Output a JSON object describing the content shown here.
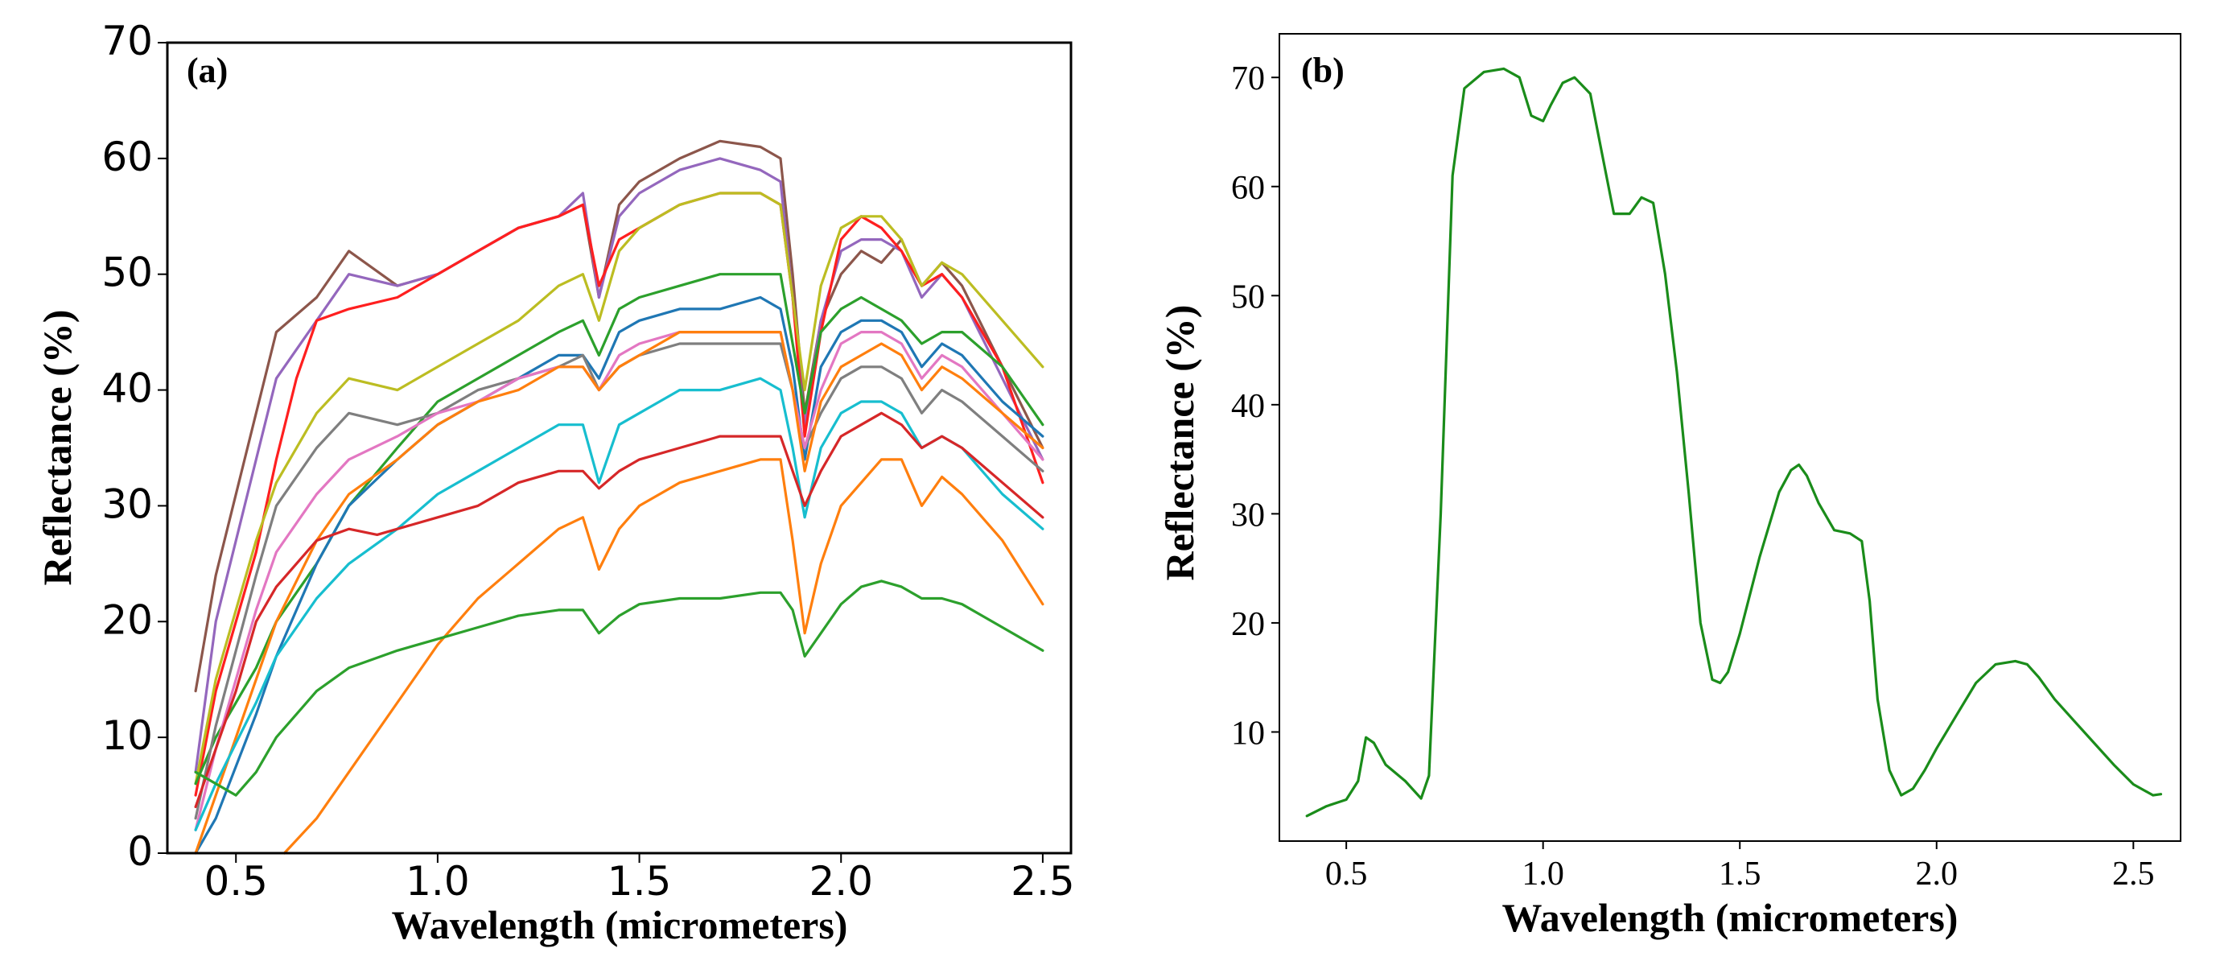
{
  "chart_data": [
    {
      "panel": "(a)",
      "type": "line",
      "xlabel": "Wavelength (micrometers)",
      "ylabel": "Reflectance (%)",
      "xlim": [
        0.33,
        2.57
      ],
      "ylim": [
        0,
        70
      ],
      "xticks": [
        0.5,
        1.0,
        1.5,
        2.0,
        2.5
      ],
      "xtick_labels": [
        "0.5",
        "1.0",
        "1.5",
        "2.0",
        "2.5"
      ],
      "yticks": [
        0,
        10,
        20,
        30,
        40,
        50,
        60,
        70
      ],
      "ytick_labels": [
        "0",
        "10",
        "20",
        "30",
        "40",
        "50",
        "60",
        "70"
      ],
      "grid": false,
      "series": [
        {
          "name": "brown",
          "color": "#8c564b",
          "x": [
            0.4,
            0.45,
            0.55,
            0.6,
            0.7,
            0.78,
            0.9,
            1.0,
            1.1,
            1.2,
            1.3,
            1.36,
            1.4,
            1.45,
            1.5,
            1.6,
            1.7,
            1.8,
            1.85,
            1.88,
            1.91,
            1.95,
            2.0,
            2.05,
            2.1,
            2.15,
            2.2,
            2.25,
            2.3,
            2.4,
            2.5
          ],
          "y": [
            14,
            24,
            38,
            45,
            48,
            52,
            49,
            50,
            52,
            54,
            55,
            56,
            48,
            56,
            58,
            60,
            61.5,
            61,
            60,
            50,
            38,
            46,
            50,
            52,
            51,
            53,
            49,
            51,
            49,
            42,
            35
          ]
        },
        {
          "name": "purple",
          "color": "#9467bd",
          "x": [
            0.4,
            0.45,
            0.55,
            0.6,
            0.7,
            0.78,
            0.9,
            1.0,
            1.1,
            1.2,
            1.3,
            1.36,
            1.4,
            1.45,
            1.5,
            1.6,
            1.7,
            1.8,
            1.85,
            1.88,
            1.91,
            1.95,
            2.0,
            2.05,
            2.1,
            2.15,
            2.2,
            2.25,
            2.3,
            2.4,
            2.5
          ],
          "y": [
            7,
            20,
            34,
            41,
            46,
            50,
            49,
            50,
            52,
            54,
            55,
            57,
            48,
            55,
            57,
            59,
            60,
            59,
            58,
            48,
            37,
            46,
            52,
            53,
            53,
            52,
            48,
            50,
            48,
            41,
            34
          ]
        },
        {
          "name": "red-upper",
          "color": "#ff1f1f",
          "x": [
            0.4,
            0.45,
            0.55,
            0.6,
            0.65,
            0.7,
            0.78,
            0.9,
            1.0,
            1.1,
            1.2,
            1.3,
            1.36,
            1.4,
            1.45,
            1.5,
            1.6,
            1.7,
            1.8,
            1.85,
            1.88,
            1.91,
            1.95,
            2.0,
            2.05,
            2.1,
            2.15,
            2.2,
            2.25,
            2.3,
            2.4,
            2.5
          ],
          "y": [
            5,
            14,
            26,
            34,
            41,
            46,
            47,
            48,
            50,
            52,
            54,
            55,
            56,
            49,
            53,
            54,
            56,
            57,
            57,
            56,
            48,
            36,
            45,
            53,
            55,
            54,
            52,
            49,
            50,
            48,
            42,
            32
          ]
        },
        {
          "name": "olive",
          "color": "#bcbd22",
          "x": [
            0.4,
            0.45,
            0.55,
            0.6,
            0.7,
            0.78,
            0.9,
            1.0,
            1.1,
            1.2,
            1.3,
            1.36,
            1.4,
            1.45,
            1.5,
            1.6,
            1.7,
            1.8,
            1.85,
            1.88,
            1.91,
            1.95,
            2.0,
            2.05,
            2.1,
            2.15,
            2.2,
            2.25,
            2.3,
            2.4,
            2.5
          ],
          "y": [
            6,
            15,
            27,
            32,
            38,
            41,
            40,
            42,
            44,
            46,
            49,
            50,
            46,
            52,
            54,
            56,
            57,
            57,
            56,
            48,
            40,
            49,
            54,
            55,
            55,
            53,
            49,
            51,
            50,
            46,
            42
          ]
        },
        {
          "name": "green-upper",
          "color": "#2ca02c",
          "x": [
            0.4,
            0.45,
            0.55,
            0.6,
            0.7,
            0.78,
            0.9,
            1.0,
            1.1,
            1.2,
            1.3,
            1.36,
            1.4,
            1.45,
            1.5,
            1.6,
            1.7,
            1.8,
            1.85,
            1.88,
            1.91,
            1.95,
            2.0,
            2.05,
            2.1,
            2.15,
            2.2,
            2.25,
            2.3,
            2.4,
            2.5
          ],
          "y": [
            6,
            10,
            16,
            20,
            25,
            30,
            35,
            39,
            41,
            43,
            45,
            46,
            43,
            47,
            48,
            49,
            50,
            50,
            50,
            44,
            38,
            45,
            47,
            48,
            47,
            46,
            44,
            45,
            45,
            42,
            37
          ]
        },
        {
          "name": "blue",
          "color": "#1f77b4",
          "x": [
            0.4,
            0.45,
            0.55,
            0.6,
            0.7,
            0.78,
            0.9,
            1.0,
            1.1,
            1.2,
            1.3,
            1.36,
            1.4,
            1.45,
            1.5,
            1.6,
            1.7,
            1.8,
            1.85,
            1.88,
            1.91,
            1.95,
            2.0,
            2.05,
            2.1,
            2.15,
            2.2,
            2.25,
            2.3,
            2.4,
            2.5
          ],
          "y": [
            0,
            3,
            12,
            17,
            25,
            30,
            34,
            37,
            39,
            41,
            43,
            43,
            41,
            45,
            46,
            47,
            47,
            48,
            47,
            42,
            34,
            42,
            45,
            46,
            46,
            45,
            42,
            44,
            43,
            39,
            36
          ]
        },
        {
          "name": "gray",
          "color": "#7f7f7f",
          "x": [
            0.4,
            0.45,
            0.55,
            0.6,
            0.7,
            0.78,
            0.9,
            1.0,
            1.1,
            1.2,
            1.3,
            1.36,
            1.4,
            1.45,
            1.5,
            1.6,
            1.7,
            1.8,
            1.85,
            1.88,
            1.91,
            1.95,
            2.0,
            2.05,
            2.1,
            2.15,
            2.2,
            2.25,
            2.3,
            2.4,
            2.5
          ],
          "y": [
            3,
            11,
            24,
            30,
            35,
            38,
            37,
            38,
            40,
            41,
            42,
            43,
            40,
            42,
            43,
            44,
            44,
            44,
            44,
            40,
            35,
            38,
            41,
            42,
            42,
            41,
            38,
            40,
            39,
            36,
            33
          ]
        },
        {
          "name": "pink",
          "color": "#e377c2",
          "x": [
            0.4,
            0.45,
            0.55,
            0.6,
            0.7,
            0.78,
            0.9,
            1.0,
            1.1,
            1.2,
            1.3,
            1.36,
            1.4,
            1.45,
            1.5,
            1.6,
            1.7,
            1.8,
            1.85,
            1.88,
            1.91,
            1.95,
            2.0,
            2.05,
            2.1,
            2.15,
            2.2,
            2.25,
            2.3,
            2.4,
            2.5
          ],
          "y": [
            2,
            9,
            21,
            26,
            31,
            34,
            36,
            38,
            39,
            41,
            42,
            42,
            40,
            43,
            44,
            45,
            45,
            45,
            45,
            40,
            35,
            40,
            44,
            45,
            45,
            44,
            41,
            43,
            42,
            38,
            34
          ]
        },
        {
          "name": "orange-upper",
          "color": "#ff7f0e",
          "x": [
            0.4,
            0.45,
            0.55,
            0.6,
            0.7,
            0.78,
            0.9,
            1.0,
            1.1,
            1.2,
            1.3,
            1.36,
            1.4,
            1.45,
            1.5,
            1.6,
            1.7,
            1.8,
            1.85,
            1.88,
            1.91,
            1.95,
            2.0,
            2.05,
            2.1,
            2.15,
            2.2,
            2.25,
            2.3,
            2.4,
            2.5
          ],
          "y": [
            0,
            5,
            15,
            20,
            27,
            31,
            34,
            37,
            39,
            40,
            42,
            42,
            40,
            42,
            43,
            45,
            45,
            45,
            45,
            40,
            33,
            39,
            42,
            43,
            44,
            43,
            40,
            42,
            41,
            38,
            35
          ]
        },
        {
          "name": "cyan",
          "color": "#17becf",
          "x": [
            0.4,
            0.45,
            0.55,
            0.6,
            0.7,
            0.78,
            0.9,
            1.0,
            1.1,
            1.2,
            1.3,
            1.36,
            1.4,
            1.45,
            1.5,
            1.6,
            1.7,
            1.8,
            1.85,
            1.88,
            1.91,
            1.95,
            2.0,
            2.05,
            2.1,
            2.15,
            2.2,
            2.25,
            2.3,
            2.4,
            2.5
          ],
          "y": [
            2,
            6,
            13,
            17,
            22,
            25,
            28,
            31,
            33,
            35,
            37,
            37,
            32,
            37,
            38,
            40,
            40,
            41,
            40,
            35,
            29,
            35,
            38,
            39,
            39,
            38,
            35,
            36,
            35,
            31,
            28
          ]
        },
        {
          "name": "red-lower",
          "color": "#d62728",
          "x": [
            0.4,
            0.45,
            0.5,
            0.55,
            0.6,
            0.65,
            0.7,
            0.78,
            0.85,
            0.9,
            1.0,
            1.1,
            1.2,
            1.3,
            1.36,
            1.4,
            1.45,
            1.5,
            1.6,
            1.7,
            1.8,
            1.85,
            1.88,
            1.91,
            1.95,
            2.0,
            2.05,
            2.1,
            2.15,
            2.2,
            2.25,
            2.3,
            2.4,
            2.5
          ],
          "y": [
            4,
            9,
            14,
            20,
            23,
            25,
            27,
            28,
            27.5,
            28,
            29,
            30,
            32,
            33,
            33,
            31.5,
            33,
            34,
            35,
            36,
            36,
            36,
            33,
            30,
            33,
            36,
            37,
            38,
            37,
            35,
            36,
            35,
            32,
            29
          ]
        },
        {
          "name": "orange-lower",
          "color": "#ff7f0e",
          "x": [
            0.62,
            0.7,
            0.8,
            0.9,
            1.0,
            1.1,
            1.2,
            1.3,
            1.36,
            1.4,
            1.45,
            1.5,
            1.6,
            1.7,
            1.8,
            1.85,
            1.88,
            1.91,
            1.95,
            2.0,
            2.05,
            2.1,
            2.15,
            2.2,
            2.25,
            2.3,
            2.4,
            2.5
          ],
          "y": [
            0,
            3,
            8,
            13,
            18,
            22,
            25,
            28,
            29,
            24.5,
            28,
            30,
            32,
            33,
            34,
            34,
            27,
            19,
            25,
            30,
            32,
            34,
            34,
            30,
            32.5,
            31,
            27,
            21.5
          ]
        },
        {
          "name": "green-lower",
          "color": "#2ca02c",
          "x": [
            0.4,
            0.45,
            0.5,
            0.55,
            0.6,
            0.7,
            0.78,
            0.9,
            1.0,
            1.1,
            1.2,
            1.3,
            1.36,
            1.4,
            1.45,
            1.5,
            1.6,
            1.7,
            1.8,
            1.85,
            1.88,
            1.91,
            1.95,
            2.0,
            2.05,
            2.1,
            2.15,
            2.2,
            2.25,
            2.3,
            2.4,
            2.5
          ],
          "y": [
            7,
            6,
            5,
            7,
            10,
            14,
            16,
            17.5,
            18.5,
            19.5,
            20.5,
            21,
            21,
            19,
            20.5,
            21.5,
            22,
            22,
            22.5,
            22.5,
            21,
            17,
            19,
            21.5,
            23,
            23.5,
            23,
            22,
            22,
            21.5,
            19.5,
            17.5
          ]
        }
      ]
    },
    {
      "panel": "(b)",
      "type": "line",
      "xlabel": "Wavelength (micrometers)",
      "ylabel": "Reflectance (%)",
      "xlim": [
        0.33,
        2.62
      ],
      "ylim": [
        0,
        74
      ],
      "xticks": [
        0.5,
        1.0,
        1.5,
        2.0,
        2.5
      ],
      "xtick_labels": [
        "0.5",
        "1.0",
        "1.5",
        "2.0",
        "2.5"
      ],
      "yticks": [
        10,
        20,
        30,
        40,
        50,
        60,
        70
      ],
      "ytick_labels": [
        "10",
        "20",
        "30",
        "40",
        "50",
        "60",
        "70"
      ],
      "grid": false,
      "series": [
        {
          "name": "spectrum",
          "color": "#1a8c1a",
          "x": [
            0.4,
            0.45,
            0.5,
            0.53,
            0.55,
            0.57,
            0.6,
            0.65,
            0.69,
            0.71,
            0.74,
            0.77,
            0.8,
            0.85,
            0.9,
            0.94,
            0.97,
            1.0,
            1.02,
            1.05,
            1.08,
            1.12,
            1.15,
            1.18,
            1.22,
            1.25,
            1.28,
            1.31,
            1.34,
            1.37,
            1.4,
            1.43,
            1.45,
            1.47,
            1.5,
            1.55,
            1.6,
            1.63,
            1.65,
            1.67,
            1.7,
            1.74,
            1.78,
            1.81,
            1.83,
            1.85,
            1.88,
            1.91,
            1.94,
            1.97,
            2.0,
            2.05,
            2.1,
            2.15,
            2.2,
            2.23,
            2.26,
            2.3,
            2.35,
            2.4,
            2.45,
            2.5,
            2.55,
            2.57
          ],
          "y": [
            2.3,
            3.2,
            3.8,
            5.5,
            9.5,
            9.0,
            7.0,
            5.5,
            3.9,
            6,
            30,
            61,
            69,
            70.5,
            70.8,
            70,
            66.5,
            66,
            67.5,
            69.5,
            70,
            68.5,
            63,
            57.5,
            57.5,
            59,
            58.5,
            52,
            43,
            32,
            20,
            14.8,
            14.5,
            15.5,
            19,
            26,
            32,
            34,
            34.5,
            33.5,
            31,
            28.5,
            28.2,
            27.5,
            22,
            13,
            6.5,
            4.2,
            4.8,
            6.5,
            8.5,
            11.5,
            14.5,
            16.2,
            16.5,
            16.2,
            15,
            13,
            11,
            9,
            7,
            5.2,
            4.2,
            4.3
          ]
        }
      ]
    }
  ]
}
